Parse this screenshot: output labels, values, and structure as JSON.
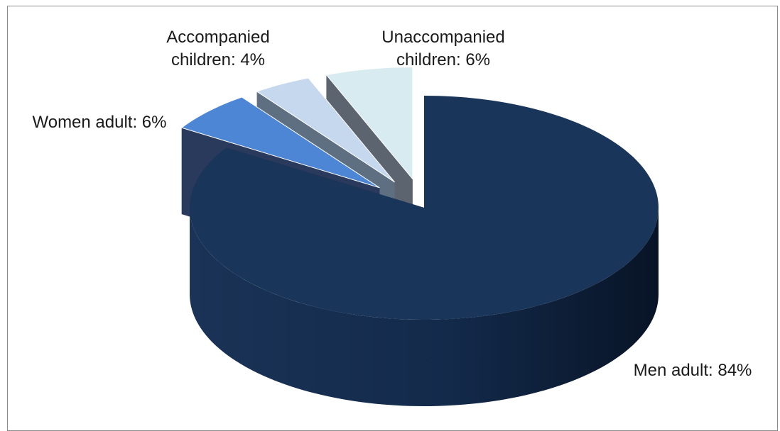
{
  "chart_data": {
    "type": "pie",
    "style": "3d-exploded",
    "title": "",
    "legend": "none",
    "categories": [
      "Men adult",
      "Women adult",
      "Accompanied children",
      "Unaccompanied children"
    ],
    "values": [
      84,
      6,
      4,
      6
    ],
    "unit": "%",
    "data_labels": [
      [
        "Men adult: 84%"
      ],
      [
        "Women adult: 6%"
      ],
      [
        "Accompanied",
        "children: 4%"
      ],
      [
        "Unaccompanied",
        "children: 6%"
      ]
    ],
    "colors": {
      "men_top": "#1a355a",
      "men_side": "#10223f",
      "women_top": "#4d86d4",
      "women_side": "#2a3a5c",
      "accomp_top": "#c6d8ee",
      "accomp_side": "#5d6f80",
      "unaccomp_top": "#d8ebf1",
      "unaccomp_side": "#5c6470"
    }
  }
}
